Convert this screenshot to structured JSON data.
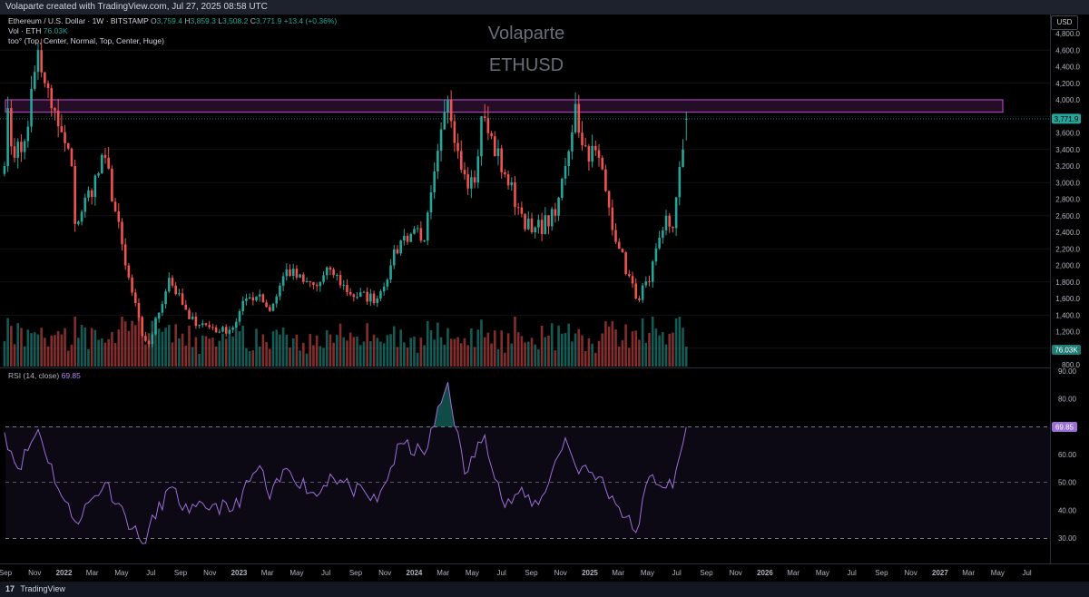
{
  "header": {
    "title": "Volaparte created with TradingView.com, Jul 27, 2025 08:58 UTC"
  },
  "legend": {
    "symbol": "Ethereum / U.S. Dollar · 1W · BITSTAMP",
    "o_label": "O",
    "o_value": "3,759.4",
    "h_label": "H",
    "h_value": "3,859.3",
    "l_label": "L",
    "l_value": "3,508.2",
    "c_label": "C",
    "c_value": "3,771.9",
    "change": "+13.4 (+0.36%)",
    "vol_label": "Vol · ETH",
    "vol_value": "76.03K",
    "indicator": "too° (Top, Center, Normal, Top, Center, Huge)"
  },
  "watermark": {
    "line1": "Volaparte",
    "line2": "ETHUSD"
  },
  "currency_button": "USD",
  "price_axis": {
    "ticks": [
      "4,800.0",
      "4,600.0",
      "4,400.0",
      "4,200.0",
      "4,000.0",
      "3,800.0",
      "3,600.0",
      "3,400.0",
      "3,200.0",
      "3,000.0",
      "2,800.0",
      "2,600.0",
      "2,400.0",
      "2,200.0",
      "2,000.0",
      "1,800.0",
      "1,600.0",
      "1,400.0",
      "1,200.0",
      "1,000.0",
      "800.0"
    ]
  },
  "last_price_label": "3,771.9",
  "volume_label": "76.03K",
  "rsi": {
    "legend": "RSI (14, close)",
    "value": "69.85",
    "ticks": [
      "90.00",
      "80.00",
      "60.00",
      "50.00",
      "40.00",
      "30.00"
    ]
  },
  "time_axis": {
    "labels": [
      "Sep",
      "Nov",
      "2022",
      "Mar",
      "May",
      "Jul",
      "Sep",
      "Nov",
      "2023",
      "Mar",
      "May",
      "Jul",
      "Sep",
      "Nov",
      "2024",
      "Mar",
      "May",
      "Jul",
      "Sep",
      "Nov",
      "2025",
      "Mar",
      "May",
      "Jul",
      "Sep",
      "Nov",
      "2026",
      "Mar",
      "May",
      "Jul",
      "Sep",
      "Nov",
      "2027",
      "Mar",
      "May",
      "Jul"
    ]
  },
  "footer": {
    "brand": "TradingView",
    "logo": "17"
  },
  "colors": {
    "up": "#26a69a",
    "down": "#ef5350",
    "rsi_line": "#9b6fd6",
    "zone": "#c94fd6",
    "bg": "#000000"
  },
  "chart_data": {
    "type": "candlestick",
    "timeframe": "1W",
    "x_range": [
      "2021-09",
      "2027-08"
    ],
    "y_range": [
      800,
      4900
    ],
    "resistance_zone": [
      3850,
      4000
    ],
    "waypoints_date": [
      "2021-08-30",
      "2021-09-06",
      "2021-09-20",
      "2021-10-11",
      "2021-11-08",
      "2021-11-22",
      "2021-12-06",
      "2022-01-17",
      "2022-01-24",
      "2022-03-28",
      "2022-05-09",
      "2022-06-13",
      "2022-06-27",
      "2022-08-08",
      "2022-09-19",
      "2022-11-07",
      "2022-11-21",
      "2022-12-19",
      "2023-01-16",
      "2023-02-13",
      "2023-03-06",
      "2023-04-10",
      "2023-05-15",
      "2023-06-12",
      "2023-07-10",
      "2023-08-21",
      "2023-10-16",
      "2023-11-13",
      "2023-12-04",
      "2024-01-08",
      "2024-01-22",
      "2024-03-11",
      "2024-04-15",
      "2024-05-06",
      "2024-05-20",
      "2024-07-08",
      "2024-08-05",
      "2024-09-02",
      "2024-10-21",
      "2024-11-11",
      "2024-12-02",
      "2024-12-16",
      "2025-01-20",
      "2025-02-10",
      "2025-03-03",
      "2025-04-07",
      "2025-05-05",
      "2025-06-09",
      "2025-06-23",
      "2025-07-14",
      "2025-07-21"
    ],
    "waypoints_close": [
      3200,
      3900,
      3300,
      3500,
      4600,
      4200,
      3900,
      3200,
      2500,
      3300,
      2000,
      1150,
      1050,
      1850,
      1350,
      1250,
      1200,
      1250,
      1600,
      1650,
      1450,
      1950,
      1800,
      1750,
      1950,
      1650,
      1600,
      2000,
      2300,
      2450,
      2300,
      4000,
      3100,
      3000,
      3800,
      3100,
      2700,
      2400,
      2600,
      3200,
      3950,
      3450,
      3300,
      2700,
      2200,
      1600,
      1800,
      2600,
      2450,
      3400,
      3771.9
    ],
    "ohlc_last": {
      "date": "2025-07-21",
      "open": 3759.4,
      "high": 3859.3,
      "low": 3508.2,
      "close": 3771.9
    },
    "volume_last": "76.03K",
    "rsi": {
      "period": 14,
      "source": "close",
      "last": 69.85,
      "y_range": [
        25,
        90
      ],
      "levels": [
        30,
        50,
        70
      ],
      "waypoints_date": [
        "2021-08-30",
        "2021-09-27",
        "2021-11-08",
        "2021-12-27",
        "2022-01-24",
        "2022-03-28",
        "2022-05-09",
        "2022-06-13",
        "2022-08-08",
        "2022-09-19",
        "2022-11-07",
        "2022-12-19",
        "2023-02-13",
        "2023-03-06",
        "2023-04-10",
        "2023-06-12",
        "2023-07-10",
        "2023-08-21",
        "2023-10-16",
        "2023-12-04",
        "2024-01-22",
        "2024-03-11",
        "2024-04-15",
        "2024-05-27",
        "2024-07-08",
        "2024-08-05",
        "2024-09-16",
        "2024-11-11",
        "2024-12-02",
        "2025-01-20",
        "2025-03-03",
        "2025-04-07",
        "2025-05-05",
        "2025-06-23",
        "2025-07-21"
      ],
      "waypoints_value": [
        68,
        55,
        69,
        45,
        36,
        50,
        38,
        28,
        48,
        39,
        42,
        40,
        56,
        44,
        55,
        45,
        53,
        48,
        43,
        64,
        60,
        86,
        53,
        67,
        41,
        46,
        42,
        66,
        56,
        52,
        41,
        32,
        52,
        48,
        69.85
      ]
    }
  }
}
